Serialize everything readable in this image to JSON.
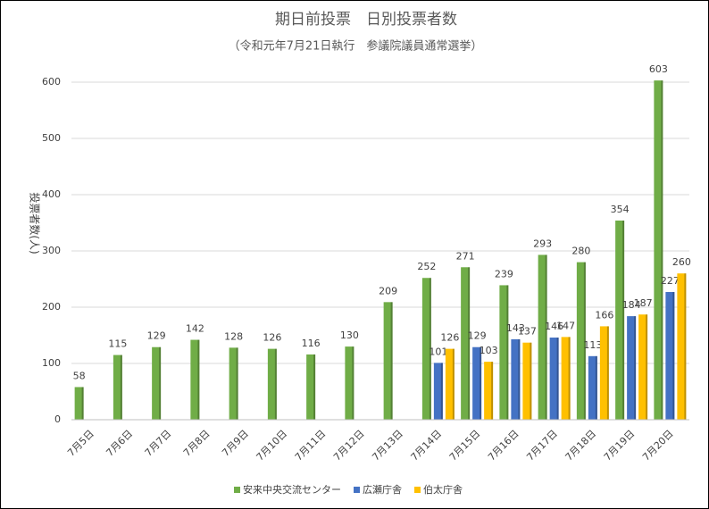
{
  "chart_data": {
    "type": "bar",
    "title": "期日前投票　日別投票者数",
    "subtitle": "（令和元年7月21日執行　参議院議員通常選挙）",
    "y_label": "投票者数(人)",
    "categories": [
      "7月5日",
      "7月6日",
      "7月7日",
      "7月8日",
      "7月9日",
      "7月10日",
      "7月11日",
      "7月12日",
      "7月13日",
      "7月14日",
      "7月15日",
      "7月16日",
      "7月17日",
      "7月18日",
      "7月19日",
      "7月20日"
    ],
    "series": [
      {
        "name": "安来中央交流センター",
        "color": "#70ad47",
        "values": [
          58,
          115,
          129,
          142,
          128,
          126,
          116,
          130,
          209,
          252,
          271,
          239,
          293,
          280,
          354,
          603
        ]
      },
      {
        "name": "広瀬庁舎",
        "color": "#4472c4",
        "values": [
          null,
          null,
          null,
          null,
          null,
          null,
          null,
          null,
          null,
          101,
          129,
          143,
          146,
          113,
          184,
          227
        ]
      },
      {
        "name": "伯太庁舎",
        "color": "#ffc000",
        "values": [
          null,
          null,
          null,
          null,
          null,
          null,
          null,
          null,
          null,
          126,
          103,
          137,
          147,
          166,
          187,
          260
        ]
      }
    ],
    "ylim": [
      0,
      600
    ],
    "yticks": [
      0,
      100,
      200,
      300,
      400,
      500,
      600
    ],
    "grid": true,
    "legend": "bottom"
  }
}
